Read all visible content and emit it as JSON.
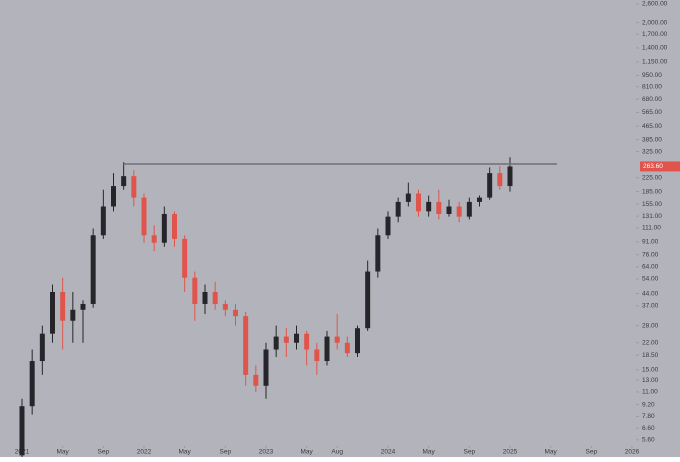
{
  "chart_data": {
    "type": "candlestick",
    "log_scale": true,
    "up_color": "#26262a",
    "down_color": "#e0544b",
    "background": "#b3b4bb",
    "x": [
      "2021-01",
      "2021-02",
      "2021-03",
      "2021-04",
      "2021-05",
      "2021-06",
      "2021-07",
      "2021-08",
      "2021-09",
      "2021-10",
      "2021-11",
      "2021-12",
      "2022-01",
      "2022-02",
      "2022-03",
      "2022-04",
      "2022-05",
      "2022-06",
      "2022-07",
      "2022-08",
      "2022-09",
      "2022-10",
      "2022-11",
      "2022-12",
      "2023-01",
      "2023-02",
      "2023-03",
      "2023-04",
      "2023-05",
      "2023-06",
      "2023-07",
      "2023-08",
      "2023-09",
      "2023-10",
      "2023-11",
      "2023-12",
      "2024-01",
      "2024-02",
      "2024-03",
      "2024-04",
      "2024-05",
      "2024-06",
      "2024-07",
      "2024-08",
      "2024-09",
      "2024-10",
      "2024-11",
      "2024-12",
      "2025-01"
    ],
    "open": [
      4.5,
      9,
      17,
      25,
      45,
      30,
      35,
      38,
      100,
      150,
      200,
      230,
      170,
      100,
      90,
      135,
      95,
      55,
      38,
      45,
      38,
      35,
      32,
      14,
      12,
      20,
      24,
      22,
      25,
      20,
      17,
      24,
      22,
      19,
      27,
      60,
      100,
      130,
      160,
      180,
      140,
      160,
      135,
      150,
      130,
      160,
      170,
      240,
      200
    ],
    "high": [
      10,
      20,
      28,
      50,
      55,
      45,
      40,
      110,
      190,
      240,
      280,
      250,
      180,
      115,
      150,
      140,
      100,
      60,
      50,
      52,
      40,
      38,
      34,
      16,
      22,
      28,
      27,
      28,
      26,
      22,
      26,
      33,
      24,
      28,
      70,
      110,
      140,
      170,
      210,
      190,
      175,
      190,
      165,
      160,
      170,
      175,
      260,
      265,
      300
    ],
    "low": [
      4.2,
      8,
      14,
      22,
      20,
      22,
      22,
      36,
      95,
      140,
      190,
      150,
      90,
      80,
      85,
      85,
      45,
      30,
      33,
      35,
      32,
      28,
      12,
      11,
      10,
      18,
      18,
      20,
      16,
      14,
      16,
      20,
      18,
      18,
      26,
      55,
      95,
      120,
      150,
      130,
      130,
      125,
      130,
      120,
      125,
      150,
      165,
      190,
      185
    ],
    "close": [
      9,
      17,
      25,
      45,
      30,
      35,
      38,
      100,
      150,
      200,
      230,
      170,
      100,
      90,
      135,
      95,
      55,
      38,
      45,
      38,
      35,
      32,
      14,
      12,
      20,
      24,
      22,
      25,
      20,
      17,
      24,
      22,
      19,
      27,
      60,
      100,
      130,
      160,
      180,
      140,
      160,
      135,
      150,
      130,
      160,
      170,
      240,
      200,
      263.6
    ],
    "last_price_label": "263.60",
    "level": 273,
    "xlim": [
      "2021-01",
      "2026-01"
    ],
    "xticks": [
      {
        "value": "2021-01",
        "label": "2021"
      },
      {
        "value": "2021-05",
        "label": "May"
      },
      {
        "value": "2021-09",
        "label": "Sep"
      },
      {
        "value": "2022-01",
        "label": "2022"
      },
      {
        "value": "2022-05",
        "label": "May"
      },
      {
        "value": "2022-09",
        "label": "Sep"
      },
      {
        "value": "2023-01",
        "label": "2023"
      },
      {
        "value": "2023-05",
        "label": "May"
      },
      {
        "value": "2023-08",
        "label": "Aug"
      },
      {
        "value": "2024-01",
        "label": "2024"
      },
      {
        "value": "2024-05",
        "label": "May"
      },
      {
        "value": "2024-09",
        "label": "Sep"
      },
      {
        "value": "2025-01",
        "label": "2025"
      },
      {
        "value": "2025-05",
        "label": "May"
      },
      {
        "value": "2025-09",
        "label": "Sep"
      },
      {
        "value": "2026-01",
        "label": "2026"
      }
    ],
    "ylim": [
      4.4,
      2750
    ],
    "yticks": [
      {
        "value": 2600,
        "label": "2,600.00"
      },
      {
        "value": 2000,
        "label": "2,000.00"
      },
      {
        "value": 1700,
        "label": "1,700.00"
      },
      {
        "value": 1400,
        "label": "1,400.00"
      },
      {
        "value": 1150,
        "label": "1,150.00"
      },
      {
        "value": 950,
        "label": "950.00"
      },
      {
        "value": 810,
        "label": "810.00"
      },
      {
        "value": 680,
        "label": "680.00"
      },
      {
        "value": 565,
        "label": "565.00"
      },
      {
        "value": 465,
        "label": "465.00"
      },
      {
        "value": 385,
        "label": "385.00"
      },
      {
        "value": 325,
        "label": "325.00"
      },
      {
        "value": 225,
        "label": "225.00"
      },
      {
        "value": 185,
        "label": "185.00"
      },
      {
        "value": 155,
        "label": "155.00"
      },
      {
        "value": 131,
        "label": "131.00"
      },
      {
        "value": 111,
        "label": "111.00"
      },
      {
        "value": 91,
        "label": "91.00"
      },
      {
        "value": 76,
        "label": "76.00"
      },
      {
        "value": 64,
        "label": "64.00"
      },
      {
        "value": 54,
        "label": "54.00"
      },
      {
        "value": 44,
        "label": "44.00"
      },
      {
        "value": 37,
        "label": "37.00"
      },
      {
        "value": 28,
        "label": "28.00"
      },
      {
        "value": 22,
        "label": "22.00"
      },
      {
        "value": 18.5,
        "label": "18.50"
      },
      {
        "value": 15,
        "label": "15.00"
      },
      {
        "value": 13,
        "label": "13.00"
      },
      {
        "value": 11,
        "label": "11.00"
      },
      {
        "value": 9.2,
        "label": "9.20"
      },
      {
        "value": 7.8,
        "label": "7.80"
      },
      {
        "value": 6.6,
        "label": "6.60"
      },
      {
        "value": 5.6,
        "label": "5.60"
      }
    ]
  }
}
